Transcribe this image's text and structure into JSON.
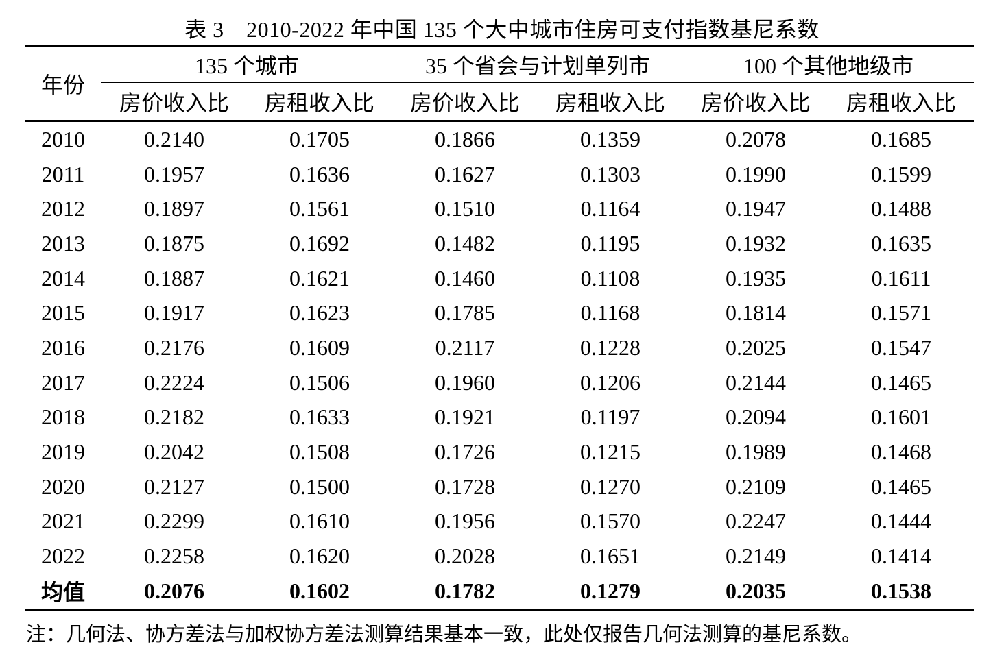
{
  "chart_data": {
    "type": "table",
    "title": "表 3　2010-2022 年中国 135 个大中城市住房可支付指数基尼系数",
    "corner_header": "年份",
    "column_groups": [
      "135 个城市",
      "35 个省会与计划单列市",
      "100 个其他地级市"
    ],
    "sub_headers": [
      "房价收入比",
      "房租收入比",
      "房价收入比",
      "房租收入比",
      "房价收入比",
      "房租收入比"
    ],
    "rows": [
      {
        "year": "2010",
        "values": [
          "0.2140",
          "0.1705",
          "0.1866",
          "0.1359",
          "0.2078",
          "0.1685"
        ],
        "bold": false
      },
      {
        "year": "2011",
        "values": [
          "0.1957",
          "0.1636",
          "0.1627",
          "0.1303",
          "0.1990",
          "0.1599"
        ],
        "bold": false
      },
      {
        "year": "2012",
        "values": [
          "0.1897",
          "0.1561",
          "0.1510",
          "0.1164",
          "0.1947",
          "0.1488"
        ],
        "bold": false
      },
      {
        "year": "2013",
        "values": [
          "0.1875",
          "0.1692",
          "0.1482",
          "0.1195",
          "0.1932",
          "0.1635"
        ],
        "bold": false
      },
      {
        "year": "2014",
        "values": [
          "0.1887",
          "0.1621",
          "0.1460",
          "0.1108",
          "0.1935",
          "0.1611"
        ],
        "bold": false
      },
      {
        "year": "2015",
        "values": [
          "0.1917",
          "0.1623",
          "0.1785",
          "0.1168",
          "0.1814",
          "0.1571"
        ],
        "bold": false
      },
      {
        "year": "2016",
        "values": [
          "0.2176",
          "0.1609",
          "0.2117",
          "0.1228",
          "0.2025",
          "0.1547"
        ],
        "bold": false
      },
      {
        "year": "2017",
        "values": [
          "0.2224",
          "0.1506",
          "0.1960",
          "0.1206",
          "0.2144",
          "0.1465"
        ],
        "bold": false
      },
      {
        "year": "2018",
        "values": [
          "0.2182",
          "0.1633",
          "0.1921",
          "0.1197",
          "0.2094",
          "0.1601"
        ],
        "bold": false
      },
      {
        "year": "2019",
        "values": [
          "0.2042",
          "0.1508",
          "0.1726",
          "0.1215",
          "0.1989",
          "0.1468"
        ],
        "bold": false
      },
      {
        "year": "2020",
        "values": [
          "0.2127",
          "0.1500",
          "0.1728",
          "0.1270",
          "0.2109",
          "0.1465"
        ],
        "bold": false
      },
      {
        "year": "2021",
        "values": [
          "0.2299",
          "0.1610",
          "0.1956",
          "0.1570",
          "0.2247",
          "0.1444"
        ],
        "bold": false
      },
      {
        "year": "2022",
        "values": [
          "0.2258",
          "0.1620",
          "0.2028",
          "0.1651",
          "0.2149",
          "0.1414"
        ],
        "bold": false
      },
      {
        "year": "均值",
        "values": [
          "0.2076",
          "0.1602",
          "0.1782",
          "0.1279",
          "0.2035",
          "0.1538"
        ],
        "bold": true
      }
    ],
    "note": "注：几何法、协方差法与加权协方差法测算结果基本一致，此处仅报告几何法测算的基尼系数。"
  }
}
